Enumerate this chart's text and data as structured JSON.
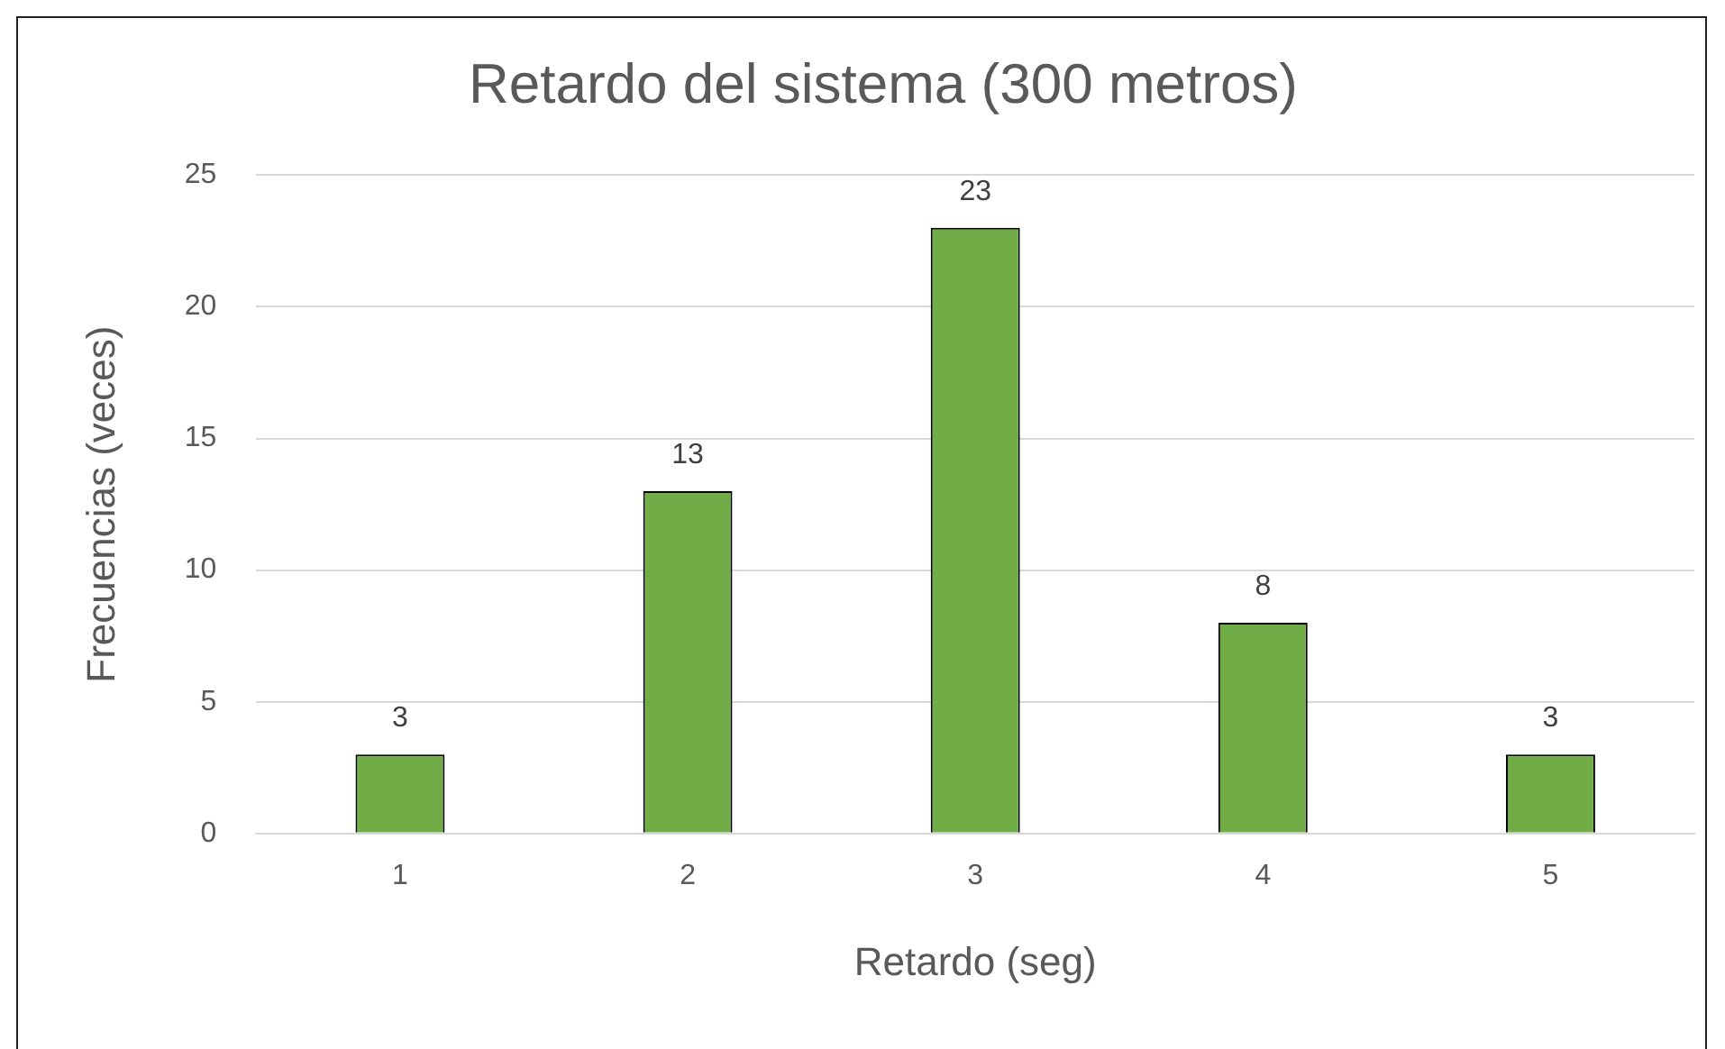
{
  "chart_data": {
    "type": "bar",
    "title": "Retardo del sistema (300 metros)",
    "xlabel": "Retardo (seg)",
    "ylabel": "Frecuencias (veces)",
    "categories": [
      "1",
      "2",
      "3",
      "4",
      "5"
    ],
    "values": [
      3,
      13,
      23,
      8,
      3
    ],
    "color": "#70ad47",
    "ylim": [
      0,
      25
    ],
    "yticks": [
      0,
      5,
      10,
      15,
      20,
      25
    ],
    "grid": "y",
    "data_labels": true
  }
}
